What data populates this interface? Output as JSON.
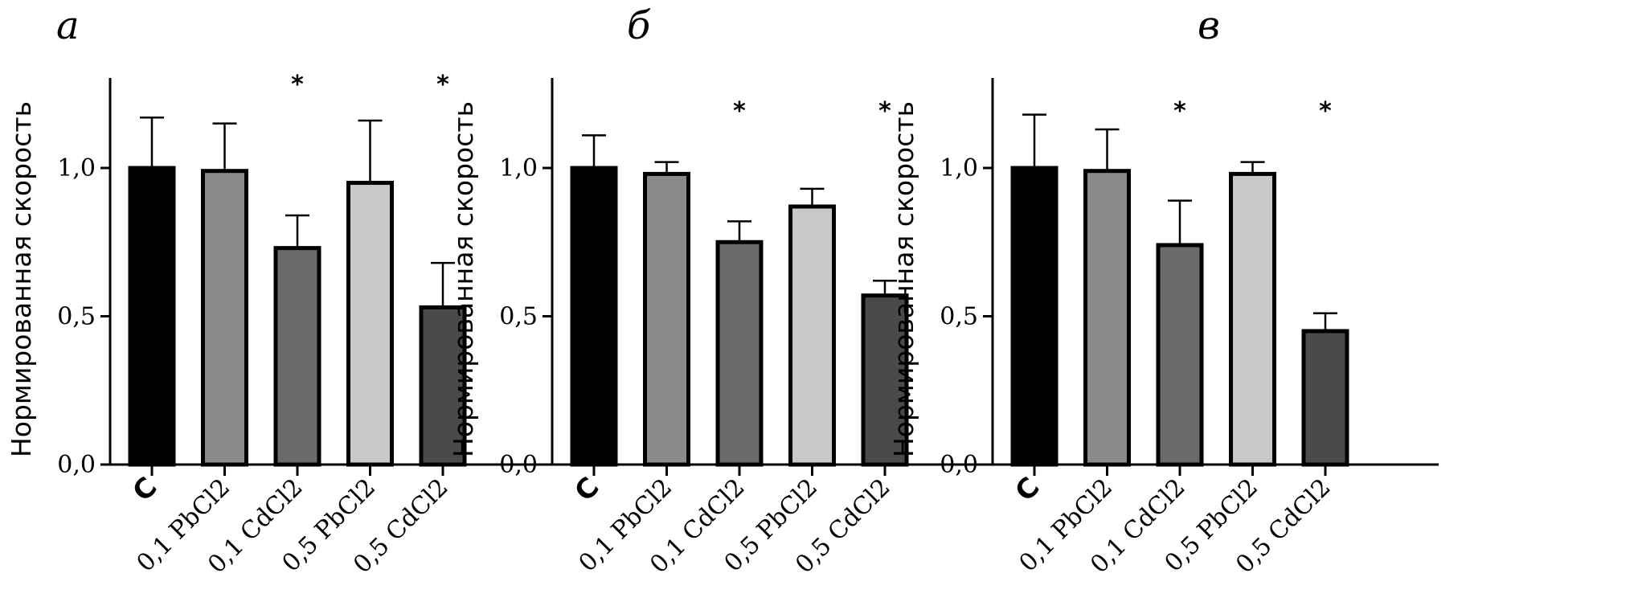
{
  "chart_data": [
    {
      "panel_label": "а",
      "type": "bar",
      "ylabel": "Нормированная скорость",
      "ylim": [
        0,
        1.3
      ],
      "yticks": [
        0.0,
        0.5,
        1.0
      ],
      "ytick_labels": [
        "0,0",
        "0,5",
        "1,0"
      ],
      "categories": [
        "C",
        "0,1 PbCl2",
        "0,1 CdCl2",
        "0,5 PbCl2",
        "0,5 CdCl2"
      ],
      "values": [
        1.0,
        0.99,
        0.73,
        0.95,
        0.53
      ],
      "errors": [
        0.17,
        0.16,
        0.11,
        0.21,
        0.15
      ],
      "significance": [
        "",
        "",
        "*",
        "",
        "*"
      ],
      "colors": [
        "#000000",
        "#8a8a8a",
        "#6a6a6a",
        "#c8c8c8",
        "#4a4a4a"
      ]
    },
    {
      "panel_label": "б",
      "type": "bar",
      "ylabel": "Нормированная скорость",
      "ylim": [
        0,
        1.3
      ],
      "yticks": [
        0.0,
        0.5,
        1.0
      ],
      "ytick_labels": [
        "0,0",
        "0,5",
        "1,0"
      ],
      "categories": [
        "C",
        "0,1 PbCl2",
        "0,1 CdCl2",
        "0,5 PbCl2",
        "0,5 CdCl2"
      ],
      "values": [
        1.0,
        0.98,
        0.75,
        0.87,
        0.57
      ],
      "errors": [
        0.11,
        0.04,
        0.07,
        0.06,
        0.05
      ],
      "significance": [
        "",
        "",
        "*",
        "",
        "*"
      ],
      "colors": [
        "#000000",
        "#8a8a8a",
        "#6a6a6a",
        "#c8c8c8",
        "#4a4a4a"
      ]
    },
    {
      "panel_label": "в",
      "type": "bar",
      "ylabel": "Нормированная скорость",
      "ylim": [
        0,
        1.3
      ],
      "yticks": [
        0.0,
        0.5,
        1.0
      ],
      "ytick_labels": [
        "0,0",
        "0,5",
        "1,0"
      ],
      "categories": [
        "C",
        "0,1 PbCl2",
        "0,1 CdCl2",
        "0,5 PbCl2",
        "0,5 CdCl2"
      ],
      "values": [
        1.0,
        0.99,
        0.74,
        0.98,
        0.45
      ],
      "errors": [
        0.18,
        0.14,
        0.15,
        0.04,
        0.06
      ],
      "significance": [
        "",
        "",
        "*",
        "",
        "*"
      ],
      "colors": [
        "#000000",
        "#8a8a8a",
        "#6a6a6a",
        "#c8c8c8",
        "#4a4a4a"
      ]
    }
  ]
}
